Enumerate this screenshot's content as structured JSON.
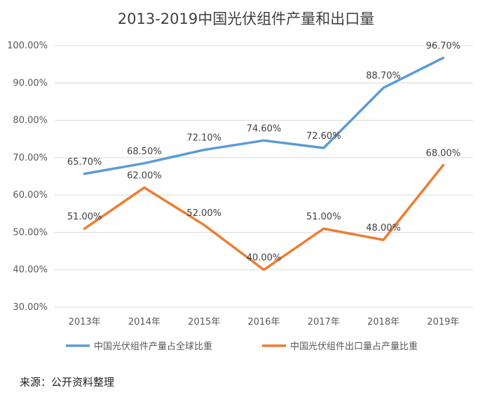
{
  "chart_data": {
    "type": "line",
    "title": "2013-2019中国光伏组件产量和出口量",
    "categories": [
      "2013年",
      "2014年",
      "2015年",
      "2016年",
      "2017年",
      "2018年",
      "2019年"
    ],
    "ylim": [
      30,
      100
    ],
    "yticks": [
      "30.00%",
      "40.00%",
      "50.00%",
      "60.00%",
      "70.00%",
      "80.00%",
      "90.00%",
      "100.00%"
    ],
    "grid": true,
    "legend_position": "bottom",
    "series": [
      {
        "name": "中国光伏组件产量占全球比重",
        "color": "#5b9bd5",
        "values": [
          65.7,
          68.5,
          72.1,
          74.6,
          72.6,
          88.7,
          96.7
        ],
        "labels": [
          "65.70%",
          "68.50%",
          "72.10%",
          "74.60%",
          "72.60%",
          "88.70%",
          "96.70%"
        ]
      },
      {
        "name": "中国光伏组件出口量占产量比重",
        "color": "#ed7d31",
        "values": [
          51.0,
          62.0,
          52.0,
          40.0,
          51.0,
          48.0,
          68.0
        ],
        "labels": [
          "51.00%",
          "62.00%",
          "52.00%",
          "40.00%",
          "51.00%",
          "48.00%",
          "68.00%"
        ]
      }
    ]
  },
  "source_text": "来源：公开资料整理"
}
